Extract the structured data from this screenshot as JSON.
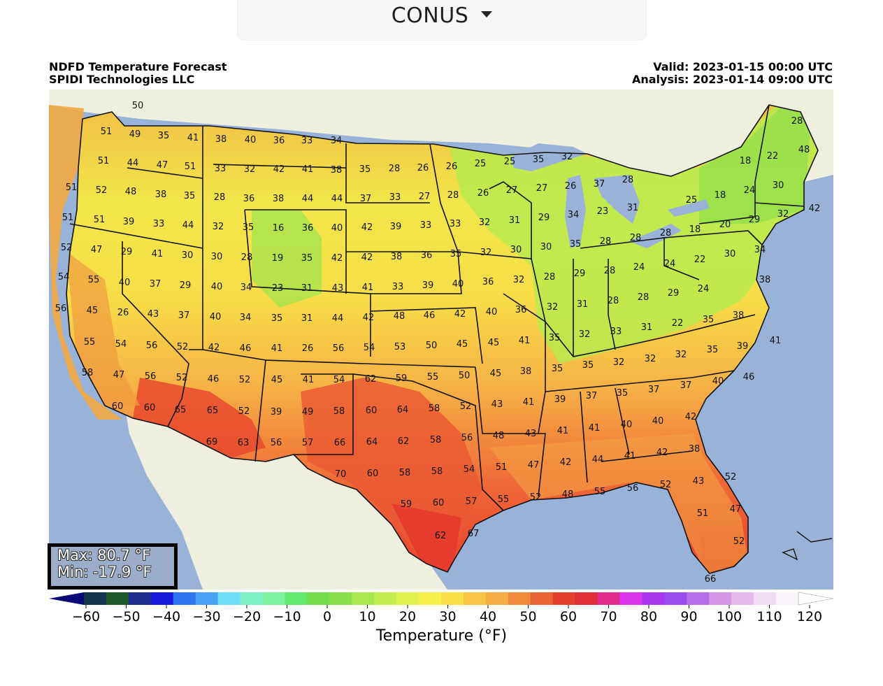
{
  "region_selector": {
    "label": "CONUS",
    "icon": "caret-down-icon"
  },
  "header": {
    "title": "NDFD Temperature Forecast",
    "org": "SPIDI Technologies LLC",
    "valid": "Valid: 2023-01-15 00:00 UTC",
    "analysis": "Analysis: 2023-01-14 09:00 UTC"
  },
  "stats": {
    "max": "Max: 80.7 °F",
    "min": "Min: -17.9 °F"
  },
  "colorbar": {
    "title": "Temperature (°F)",
    "ticks": [
      "−60",
      "−50",
      "−40",
      "−30",
      "−20",
      "−10",
      "0",
      "10",
      "20",
      "30",
      "40",
      "50",
      "60",
      "70",
      "80",
      "90",
      "100",
      "110",
      "120"
    ],
    "range": [
      -60,
      120
    ],
    "colors": [
      "#0a0a78",
      "#14354e",
      "#1f5b28",
      "#1c2e8c",
      "#1a1adc",
      "#2f74f0",
      "#4aa0f2",
      "#6fdcf5",
      "#7ef2c6",
      "#7ef29e",
      "#64e86e",
      "#74dc4c",
      "#8ade4a",
      "#a6e84e",
      "#c4ee50",
      "#e0f250",
      "#f6f04a",
      "#f9de48",
      "#f7c646",
      "#f5ae44",
      "#f08a3c",
      "#ea6434",
      "#e4402e",
      "#e02e38",
      "#e02c8c",
      "#dc34e8",
      "#aa36ee",
      "#9a4cf0",
      "#b86ee8",
      "#d696e6",
      "#e6baea",
      "#f0dcf2",
      "#faf4fa",
      "#ffffff"
    ]
  },
  "city_temps": [
    [
      "50",
      197,
      150
    ],
    [
      "51",
      152,
      187
    ],
    [
      "49",
      193,
      191
    ],
    [
      "35",
      234,
      193
    ],
    [
      "41",
      276,
      196
    ],
    [
      "38",
      316,
      198
    ],
    [
      "40",
      358,
      199
    ],
    [
      "36",
      399,
      200
    ],
    [
      "33",
      439,
      200
    ],
    [
      "34",
      481,
      200
    ],
    [
      "51",
      148,
      229
    ],
    [
      "44",
      190,
      232
    ],
    [
      "47",
      232,
      235
    ],
    [
      "51",
      272,
      237
    ],
    [
      "33",
      315,
      240
    ],
    [
      "32",
      357,
      241
    ],
    [
      "42",
      399,
      241
    ],
    [
      "41",
      440,
      241
    ],
    [
      "38",
      481,
      242
    ],
    [
      "35",
      522,
      241
    ],
    [
      "28",
      564,
      240
    ],
    [
      "26",
      605,
      239
    ],
    [
      "26",
      646,
      237
    ],
    [
      "25",
      687,
      233
    ],
    [
      "25",
      729,
      230
    ],
    [
      "35",
      770,
      227
    ],
    [
      "32",
      811,
      223
    ],
    [
      "28",
      1140,
      172
    ],
    [
      "22",
      1105,
      222
    ],
    [
      "18",
      1066,
      229
    ],
    [
      "48",
      1150,
      213
    ],
    [
      "51",
      102,
      267
    ],
    [
      "52",
      145,
      271
    ],
    [
      "48",
      187,
      273
    ],
    [
      "38",
      230,
      277
    ],
    [
      "35",
      271,
      279
    ],
    [
      "28",
      314,
      281
    ],
    [
      "36",
      356,
      283
    ],
    [
      "38",
      398,
      283
    ],
    [
      "44",
      440,
      283
    ],
    [
      "44",
      482,
      283
    ],
    [
      "37",
      523,
      283
    ],
    [
      "33",
      565,
      281
    ],
    [
      "27",
      607,
      280
    ],
    [
      "28",
      648,
      278
    ],
    [
      "26",
      691,
      275
    ],
    [
      "27",
      732,
      271
    ],
    [
      "27",
      775,
      268
    ],
    [
      "26",
      816,
      265
    ],
    [
      "37",
      857,
      262
    ],
    [
      "28",
      898,
      256
    ],
    [
      "25",
      989,
      285
    ],
    [
      "18",
      1030,
      278
    ],
    [
      "24",
      1072,
      271
    ],
    [
      "30",
      1113,
      264
    ],
    [
      "42",
      1165,
      297
    ],
    [
      "51",
      97,
      310
    ],
    [
      "51",
      142,
      313
    ],
    [
      "39",
      184,
      316
    ],
    [
      "33",
      227,
      319
    ],
    [
      "44",
      269,
      321
    ],
    [
      "32",
      312,
      323
    ],
    [
      "35",
      355,
      324
    ],
    [
      "16",
      398,
      325
    ],
    [
      "36",
      440,
      325
    ],
    [
      "40",
      482,
      325
    ],
    [
      "42",
      525,
      324
    ],
    [
      "39",
      566,
      323
    ],
    [
      "33",
      609,
      321
    ],
    [
      "33",
      651,
      319
    ],
    [
      "32",
      693,
      317
    ],
    [
      "31",
      736,
      314
    ],
    [
      "29",
      778,
      310
    ],
    [
      "34",
      820,
      306
    ],
    [
      "23",
      862,
      301
    ],
    [
      "31",
      905,
      296
    ],
    [
      "18",
      994,
      327
    ],
    [
      "20",
      1037,
      320
    ],
    [
      "29",
      1079,
      313
    ],
    [
      "32",
      1120,
      305
    ],
    [
      "52",
      95,
      353
    ],
    [
      "47",
      138,
      356
    ],
    [
      "29",
      181,
      359
    ],
    [
      "41",
      225,
      362
    ],
    [
      "30",
      268,
      364
    ],
    [
      "30",
      310,
      366
    ],
    [
      "28",
      353,
      367
    ],
    [
      "19",
      397,
      368
    ],
    [
      "35",
      439,
      368
    ],
    [
      "42",
      482,
      368
    ],
    [
      "42",
      525,
      367
    ],
    [
      "38",
      567,
      366
    ],
    [
      "36",
      610,
      364
    ],
    [
      "35",
      652,
      362
    ],
    [
      "32",
      695,
      360
    ],
    [
      "30",
      738,
      356
    ],
    [
      "30",
      781,
      352
    ],
    [
      "35",
      823,
      348
    ],
    [
      "28",
      866,
      344
    ],
    [
      "28",
      909,
      339
    ],
    [
      "28",
      952,
      332
    ],
    [
      "22",
      1001,
      370
    ],
    [
      "30",
      1044,
      362
    ],
    [
      "34",
      1087,
      356
    ],
    [
      "54",
      91,
      395
    ],
    [
      "55",
      134,
      399
    ],
    [
      "40",
      178,
      403
    ],
    [
      "37",
      222,
      405
    ],
    [
      "29",
      265,
      407
    ],
    [
      "40",
      310,
      409
    ],
    [
      "34",
      352,
      410
    ],
    [
      "23",
      397,
      411
    ],
    [
      "31",
      439,
      411
    ],
    [
      "43",
      483,
      411
    ],
    [
      "41",
      526,
      410
    ],
    [
      "33",
      569,
      409
    ],
    [
      "39",
      612,
      407
    ],
    [
      "40",
      655,
      405
    ],
    [
      "36",
      698,
      402
    ],
    [
      "32",
      742,
      399
    ],
    [
      "28",
      786,
      395
    ],
    [
      "29",
      829,
      390
    ],
    [
      "28",
      872,
      386
    ],
    [
      "24",
      914,
      381
    ],
    [
      "24",
      958,
      376
    ],
    [
      "38",
      1094,
      399
    ],
    [
      "56",
      87,
      440
    ],
    [
      "45",
      132,
      443
    ],
    [
      "26",
      176,
      446
    ],
    [
      "43",
      219,
      448
    ],
    [
      "37",
      263,
      450
    ],
    [
      "40",
      308,
      452
    ],
    [
      "34",
      351,
      453
    ],
    [
      "35",
      396,
      454
    ],
    [
      "31",
      439,
      454
    ],
    [
      "44",
      483,
      454
    ],
    [
      "42",
      527,
      453
    ],
    [
      "48",
      571,
      451
    ],
    [
      "46",
      614,
      450
    ],
    [
      "42",
      658,
      448
    ],
    [
      "40",
      703,
      445
    ],
    [
      "36",
      745,
      442
    ],
    [
      "32",
      790,
      438
    ],
    [
      "31",
      833,
      434
    ],
    [
      "28",
      877,
      429
    ],
    [
      "28",
      920,
      424
    ],
    [
      "29",
      963,
      418
    ],
    [
      "24",
      1006,
      412
    ],
    [
      "55",
      128,
      488
    ],
    [
      "54",
      173,
      491
    ],
    [
      "56",
      217,
      493
    ],
    [
      "52",
      261,
      495
    ],
    [
      "42",
      306,
      496
    ],
    [
      "46",
      351,
      497
    ],
    [
      "41",
      396,
      497
    ],
    [
      "26",
      440,
      497
    ],
    [
      "56",
      484,
      497
    ],
    [
      "54",
      528,
      496
    ],
    [
      "53",
      572,
      495
    ],
    [
      "50",
      617,
      493
    ],
    [
      "45",
      661,
      491
    ],
    [
      "45",
      706,
      489
    ],
    [
      "41",
      750,
      486
    ],
    [
      "35",
      793,
      482
    ],
    [
      "32",
      836,
      477
    ],
    [
      "33",
      881,
      473
    ],
    [
      "31",
      925,
      467
    ],
    [
      "22",
      969,
      461
    ],
    [
      "35",
      1013,
      456
    ],
    [
      "38",
      1056,
      450
    ],
    [
      "58",
      125,
      532
    ],
    [
      "47",
      170,
      535
    ],
    [
      "56",
      215,
      537
    ],
    [
      "52",
      260,
      539
    ],
    [
      "46",
      305,
      541
    ],
    [
      "52",
      350,
      542
    ],
    [
      "45",
      396,
      542
    ],
    [
      "41",
      441,
      542
    ],
    [
      "54",
      485,
      542
    ],
    [
      "62",
      530,
      541
    ],
    [
      "59",
      574,
      540
    ],
    [
      "55",
      619,
      538
    ],
    [
      "50",
      664,
      536
    ],
    [
      "45",
      709,
      533
    ],
    [
      "38",
      752,
      530
    ],
    [
      "35",
      797,
      526
    ],
    [
      "35",
      841,
      521
    ],
    [
      "32",
      885,
      517
    ],
    [
      "32",
      930,
      512
    ],
    [
      "32",
      974,
      506
    ],
    [
      "35",
      1019,
      499
    ],
    [
      "39",
      1062,
      494
    ],
    [
      "41",
      1109,
      486
    ],
    [
      "60",
      168,
      580
    ],
    [
      "60",
      214,
      582
    ],
    [
      "65",
      258,
      585
    ],
    [
      "65",
      304,
      586
    ],
    [
      "52",
      349,
      587
    ],
    [
      "39",
      395,
      588
    ],
    [
      "49",
      440,
      588
    ],
    [
      "58",
      485,
      587
    ],
    [
      "60",
      531,
      586
    ],
    [
      "64",
      576,
      585
    ],
    [
      "58",
      621,
      583
    ],
    [
      "52",
      666,
      580
    ],
    [
      "43",
      711,
      577
    ],
    [
      "41",
      756,
      574
    ],
    [
      "39",
      801,
      570
    ],
    [
      "37",
      846,
      565
    ],
    [
      "35",
      890,
      561
    ],
    [
      "37",
      935,
      556
    ],
    [
      "37",
      981,
      550
    ],
    [
      "40",
      1027,
      544
    ],
    [
      "46",
      1071,
      538
    ],
    [
      "69",
      303,
      631
    ],
    [
      "63",
      348,
      632
    ],
    [
      "56",
      395,
      632
    ],
    [
      "57",
      440,
      632
    ],
    [
      "66",
      486,
      632
    ],
    [
      "64",
      532,
      631
    ],
    [
      "62",
      577,
      630
    ],
    [
      "58",
      623,
      628
    ],
    [
      "56",
      668,
      625
    ],
    [
      "48",
      713,
      622
    ],
    [
      "43",
      759,
      619
    ],
    [
      "41",
      805,
      615
    ],
    [
      "41",
      850,
      611
    ],
    [
      "40",
      896,
      606
    ],
    [
      "40",
      941,
      601
    ],
    [
      "42",
      988,
      595
    ],
    [
      "70",
      487,
      677
    ],
    [
      "60",
      533,
      676
    ],
    [
      "58",
      579,
      675
    ],
    [
      "58",
      625,
      673
    ],
    [
      "54",
      671,
      670
    ],
    [
      "51",
      717,
      667
    ],
    [
      "47",
      763,
      664
    ],
    [
      "42",
      809,
      660
    ],
    [
      "44",
      855,
      656
    ],
    [
      "41",
      901,
      651
    ],
    [
      "42",
      947,
      646
    ],
    [
      "38",
      993,
      641
    ],
    [
      "59",
      581,
      720
    ],
    [
      "60",
      627,
      718
    ],
    [
      "57",
      674,
      716
    ],
    [
      "55",
      720,
      713
    ],
    [
      "52",
      766,
      710
    ],
    [
      "48",
      812,
      706
    ],
    [
      "55",
      858,
      702
    ],
    [
      "56",
      905,
      697
    ],
    [
      "52",
      952,
      692
    ],
    [
      "43",
      999,
      687
    ],
    [
      "52",
      1045,
      681
    ],
    [
      "62",
      630,
      765
    ],
    [
      "67",
      677,
      762
    ],
    [
      "51",
      1005,
      733
    ],
    [
      "47",
      1052,
      727
    ],
    [
      "52",
      1057,
      773
    ],
    [
      "66",
      1016,
      827
    ]
  ]
}
